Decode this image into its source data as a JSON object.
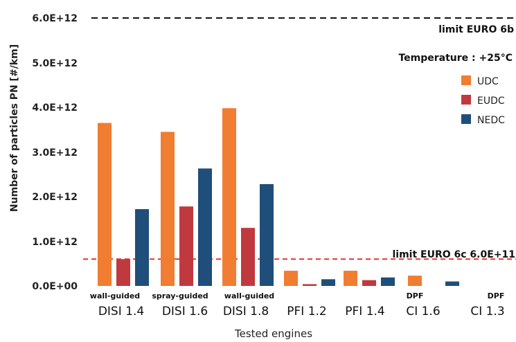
{
  "chart_data": {
    "type": "bar",
    "title": "",
    "xlabel": "Tested engines",
    "ylabel": "Number of particles PN [#/km]",
    "ylim": [
      0,
      6000000000000.0
    ],
    "yticks": [
      "0.0E+00",
      "1.0E+12",
      "2.0E+12",
      "3.0E+12",
      "4.0E+12",
      "5.0E+12",
      "6.0E+12"
    ],
    "categories": [
      "DISI 1.4",
      "DISI 1.6",
      "DISI 1.8",
      "PFI 1.2",
      "PFI 1.4",
      "CI 1.6",
      "CI 1.3"
    ],
    "sublabels": [
      "wall-guided",
      "spray-guided",
      "wall-guided",
      "",
      "",
      "DPF",
      "DPF"
    ],
    "series": [
      {
        "name": "UDC",
        "color": "#F07D32",
        "values": [
          3650000000000.0,
          3450000000000.0,
          3980000000000.0,
          340000000000.0,
          340000000000.0,
          230000000000.0,
          0
        ]
      },
      {
        "name": "EUDC",
        "color": "#C0393F",
        "values": [
          600000000000.0,
          1780000000000.0,
          1300000000000.0,
          40000000000.0,
          130000000000.0,
          0,
          0
        ]
      },
      {
        "name": "NEDC",
        "color": "#1F4E7A",
        "values": [
          1720000000000.0,
          2630000000000.0,
          2280000000000.0,
          150000000000.0,
          190000000000.0,
          100000000000.0,
          0
        ]
      }
    ],
    "annotations": {
      "temperature": "Temperature : +25°C",
      "limit_6b": {
        "label": "limit EURO 6b",
        "value": 6000000000000.0,
        "color": "#111111"
      },
      "limit_6c": {
        "label": "limit EURO 6c 6.0E+11",
        "value": 600000000000.0,
        "color": "#E8302D"
      }
    },
    "legend": "right",
    "grid": false
  }
}
